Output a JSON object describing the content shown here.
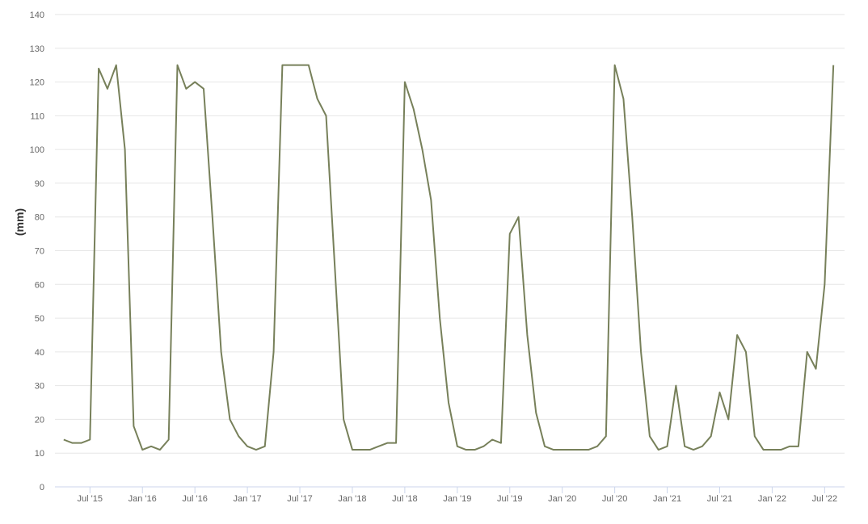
{
  "chart_data": {
    "type": "line",
    "y_label": "(mm)",
    "x": [
      "2015-04",
      "2015-05",
      "2015-06",
      "2015-07",
      "2015-08",
      "2015-09",
      "2015-10",
      "2015-11",
      "2015-12",
      "2016-01",
      "2016-02",
      "2016-03",
      "2016-04",
      "2016-05",
      "2016-06",
      "2016-07",
      "2016-08",
      "2016-09",
      "2016-10",
      "2016-11",
      "2016-12",
      "2017-01",
      "2017-02",
      "2017-03",
      "2017-04",
      "2017-05",
      "2017-06",
      "2017-07",
      "2017-08",
      "2017-09",
      "2017-10",
      "2017-11",
      "2017-12",
      "2018-01",
      "2018-02",
      "2018-03",
      "2018-04",
      "2018-05",
      "2018-06",
      "2018-07",
      "2018-08",
      "2018-09",
      "2018-10",
      "2018-11",
      "2018-12",
      "2019-01",
      "2019-02",
      "2019-03",
      "2019-04",
      "2019-05",
      "2019-06",
      "2019-07",
      "2019-08",
      "2019-09",
      "2019-10",
      "2019-11",
      "2019-12",
      "2020-01",
      "2020-02",
      "2020-03",
      "2020-04",
      "2020-05",
      "2020-06",
      "2020-07",
      "2020-08",
      "2020-09",
      "2020-10",
      "2020-11",
      "2020-12",
      "2021-01",
      "2021-02",
      "2021-03",
      "2021-04",
      "2021-05",
      "2021-06",
      "2021-07",
      "2021-08",
      "2021-09",
      "2021-10",
      "2021-11",
      "2021-12",
      "2022-01",
      "2022-02",
      "2022-03",
      "2022-04",
      "2022-05",
      "2022-06",
      "2022-07",
      "2022-08"
    ],
    "series": [
      {
        "color": "#77805a",
        "values": [
          14,
          13,
          13,
          14,
          124,
          118,
          125,
          100,
          18,
          11,
          12,
          11,
          14,
          125,
          118,
          120,
          118,
          80,
          40,
          20,
          15,
          12,
          11,
          12,
          40,
          125,
          125,
          125,
          125,
          115,
          110,
          65,
          20,
          11,
          11,
          11,
          12,
          13,
          13,
          120,
          112,
          100,
          85,
          50,
          25,
          12,
          11,
          11,
          12,
          14,
          13,
          75,
          80,
          45,
          22,
          12,
          11,
          11,
          11,
          11,
          11,
          12,
          15,
          125,
          115,
          80,
          40,
          15,
          11,
          12,
          30,
          12,
          11,
          12,
          15,
          28,
          20,
          45,
          40,
          15,
          11,
          11,
          11,
          12,
          12,
          40,
          35,
          60,
          125
        ]
      }
    ],
    "xlim": [
      "2015-03",
      "2022-09"
    ],
    "xticks": [
      {
        "value": "2015-07",
        "label": "Jul '15"
      },
      {
        "value": "2016-01",
        "label": "Jan '16"
      },
      {
        "value": "2016-07",
        "label": "Jul '16"
      },
      {
        "value": "2017-01",
        "label": "Jan '17"
      },
      {
        "value": "2017-07",
        "label": "Jul '17"
      },
      {
        "value": "2018-01",
        "label": "Jan '18"
      },
      {
        "value": "2018-07",
        "label": "Jul '18"
      },
      {
        "value": "2019-01",
        "label": "Jan '19"
      },
      {
        "value": "2019-07",
        "label": "Jul '19"
      },
      {
        "value": "2020-01",
        "label": "Jan '20"
      },
      {
        "value": "2020-07",
        "label": "Jul '20"
      },
      {
        "value": "2021-01",
        "label": "Jan '21"
      },
      {
        "value": "2021-07",
        "label": "Jul '21"
      },
      {
        "value": "2022-01",
        "label": "Jan '22"
      },
      {
        "value": "2022-07",
        "label": "Jul '22"
      }
    ],
    "ylim": [
      0,
      140
    ],
    "yticks": [
      0,
      10,
      20,
      30,
      40,
      50,
      60,
      70,
      80,
      90,
      100,
      110,
      120,
      130,
      140
    ],
    "grid": true
  }
}
